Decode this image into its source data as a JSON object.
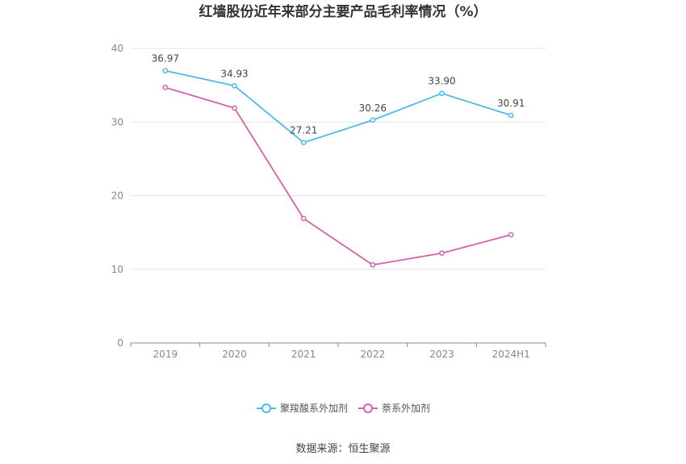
{
  "chart_data": {
    "type": "line",
    "title": "红墙股份近年来部分主要产品毛利率情况（%）",
    "categories": [
      "2019",
      "2020",
      "2021",
      "2022",
      "2023",
      "2024H1"
    ],
    "yticks": [
      "0",
      "10",
      "20",
      "30",
      "40"
    ],
    "ylim": [
      0,
      40
    ],
    "grid": true,
    "legend_position": "bottom",
    "series": [
      {
        "name": "聚羧酸系外加剂",
        "values": [
          36.97,
          34.93,
          27.21,
          30.26,
          33.9,
          30.91
        ],
        "labels": [
          "36.97",
          "34.93",
          "27.21",
          "30.26",
          "33.90",
          "30.91"
        ],
        "color": "#4dbbea"
      },
      {
        "name": "萘系外加剂",
        "values": [
          34.7,
          31.9,
          16.9,
          10.6,
          12.2,
          14.7
        ],
        "color": "#d462a7"
      }
    ],
    "source": "数据来源：恒生聚源"
  }
}
